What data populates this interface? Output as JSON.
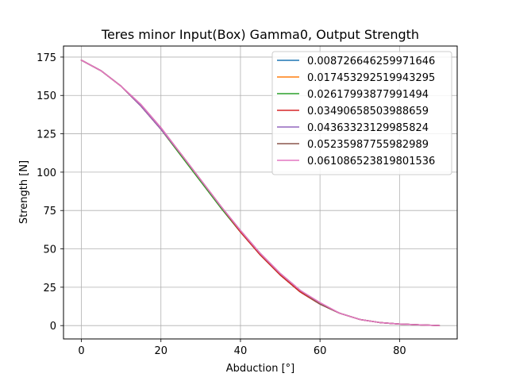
{
  "chart_data": {
    "type": "line",
    "title": "Teres minor Input(Box) Gamma0, Output Strength",
    "xlabel": "Abduction [°]",
    "ylabel": "Strength [N]",
    "xlim": [
      -4.5,
      94.5
    ],
    "ylim": [
      -8.7,
      182.2
    ],
    "xticks": [
      0,
      20,
      40,
      60,
      80
    ],
    "yticks": [
      0,
      25,
      50,
      75,
      100,
      125,
      150,
      175
    ],
    "grid": true,
    "legend_position": "top-right",
    "x": [
      0,
      5,
      10,
      15,
      20,
      25,
      30,
      35,
      40,
      45,
      50,
      55,
      60,
      65,
      70,
      75,
      80,
      85,
      90
    ],
    "series": [
      {
        "name": "0.008726646259971646",
        "color": "#1f77b4",
        "values": [
          173,
          166,
          156,
          143,
          128,
          111,
          94,
          77,
          61,
          46,
          33,
          22,
          14,
          8,
          4,
          2,
          1,
          0.5,
          0
        ]
      },
      {
        "name": "0.017453292519943295",
        "color": "#ff7f0e",
        "values": [
          173,
          166,
          156,
          143,
          128,
          111,
          94,
          77,
          61,
          46,
          33,
          22,
          14,
          8,
          4,
          2,
          1,
          0.5,
          0
        ]
      },
      {
        "name": "0.02617993877991494",
        "color": "#2ca02c",
        "values": [
          173,
          166,
          156,
          143,
          128,
          111,
          94,
          77,
          61,
          46,
          33,
          22,
          14,
          8,
          4,
          2,
          1,
          0.5,
          0
        ]
      },
      {
        "name": "0.03490658503988659",
        "color": "#d62728",
        "values": [
          173,
          166,
          156,
          143,
          128,
          112,
          95,
          78,
          61,
          46,
          33,
          22,
          14,
          8,
          4,
          2,
          1,
          0.5,
          0
        ]
      },
      {
        "name": "0.04363323129985824",
        "color": "#9467bd",
        "values": [
          173,
          166,
          156,
          143,
          128,
          112,
          95,
          78,
          62,
          47,
          34,
          23,
          14,
          8,
          4,
          2,
          1,
          0.5,
          0
        ]
      },
      {
        "name": "0.05235987755982989",
        "color": "#8c564b",
        "values": [
          173,
          166,
          156,
          144,
          129,
          112,
          95,
          78,
          62,
          47,
          34,
          23,
          14,
          8,
          4,
          2,
          1,
          0.5,
          0
        ]
      },
      {
        "name": "0.061086523819801536",
        "color": "#e377c2",
        "values": [
          173,
          166,
          156,
          144,
          129,
          112,
          95,
          78,
          62,
          47,
          34,
          23,
          15,
          8,
          4,
          2,
          1,
          0.5,
          0
        ]
      }
    ]
  }
}
